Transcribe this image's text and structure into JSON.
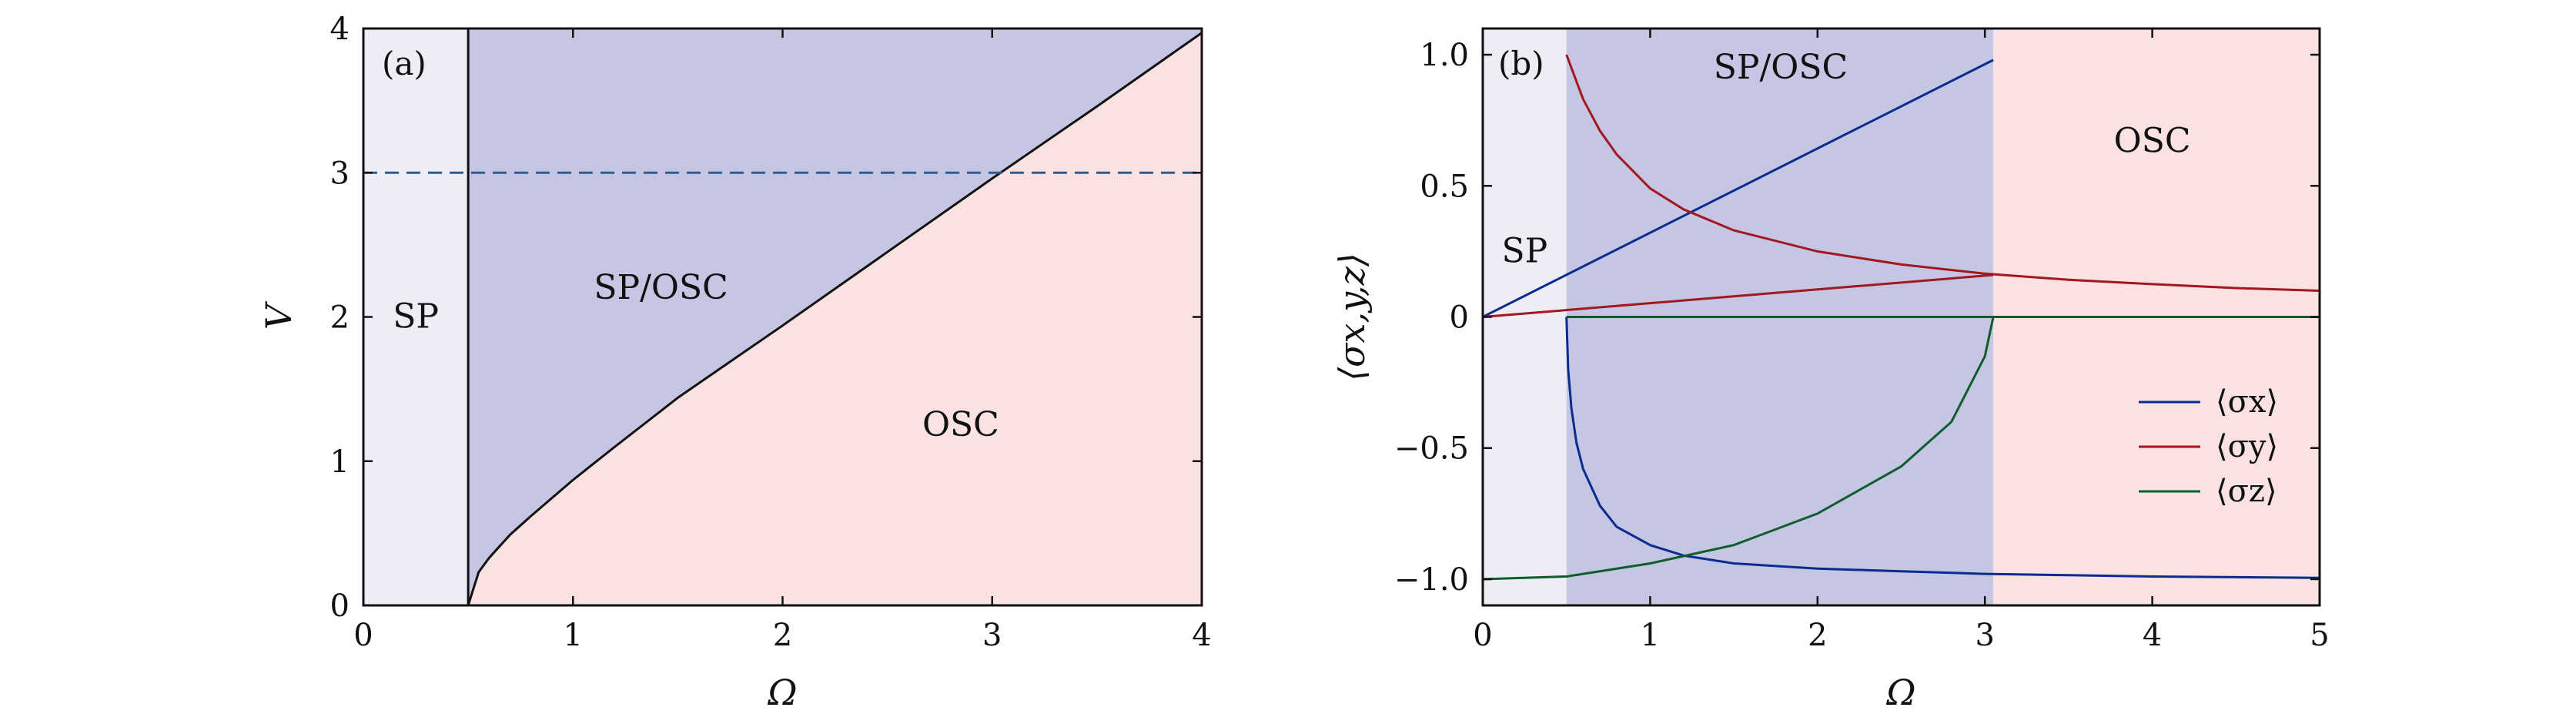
{
  "colors": {
    "sp_region": "#eeedf6",
    "sp_osc_region": "#c5c6e3",
    "osc_region": "#fae1e2",
    "boundary": "#111111",
    "dashed_line": "#2e5d8e",
    "sigma_x": "#0a2c8f",
    "sigma_y": "#a3181f",
    "sigma_z": "#0f5d2c"
  },
  "chart_data": [
    {
      "type": "area",
      "panel_label": "(a)",
      "xlabel": "Ω",
      "ylabel": "V",
      "xlim": [
        0,
        4
      ],
      "ylim": [
        0,
        4
      ],
      "xticks": [
        "0",
        "1",
        "2",
        "3",
        "4"
      ],
      "yticks": [
        "0",
        "1",
        "2",
        "3",
        "4"
      ],
      "grid": false,
      "regions": [
        {
          "label": "SP",
          "x_range": [
            0,
            0.5
          ]
        },
        {
          "label": "SP/OSC",
          "description_side": "above boundary, Ω > 0.5"
        },
        {
          "label": "OSC",
          "description_side": "below boundary, Ω > 0.5"
        }
      ],
      "boundary_curve": {
        "x": [
          0.5,
          0.55,
          0.6,
          0.7,
          0.8,
          1.0,
          1.2,
          1.5,
          2.0,
          2.5,
          3.0,
          3.5,
          4.0
        ],
        "y": [
          0.0,
          0.23,
          0.33,
          0.49,
          0.62,
          0.87,
          1.1,
          1.44,
          1.94,
          2.45,
          2.96,
          3.46,
          3.97
        ]
      },
      "vertical_boundary_x": 0.5,
      "dashed_line_y": 3
    },
    {
      "type": "line",
      "panel_label": "(b)",
      "xlabel": "Ω",
      "ylabel": "⟨σx,y,z⟩",
      "xlim": [
        0,
        5
      ],
      "ylim": [
        -1.1,
        1.1
      ],
      "xticks": [
        "0",
        "1",
        "2",
        "3",
        "4",
        "5"
      ],
      "yticks": [
        "1.0",
        "0.5",
        "0",
        "−0.5",
        "−1.0"
      ],
      "grid": false,
      "legend_position": "lower-right",
      "regions": [
        {
          "label": "SP",
          "x_range": [
            0,
            0.5
          ]
        },
        {
          "label": "SP/OSC",
          "x_range": [
            0.5,
            3.05
          ]
        },
        {
          "label": "OSC",
          "x_range": [
            3.05,
            5
          ]
        }
      ],
      "series": [
        {
          "name": "⟨σx⟩",
          "segments": [
            {
              "x": [
                0,
                3.05
              ],
              "y": [
                0,
                0.98
              ]
            },
            {
              "x": [
                0.5,
                0.51,
                0.53,
                0.56,
                0.6,
                0.7,
                0.8,
                1.0,
                1.2,
                1.5,
                2.0,
                2.5,
                3.0,
                3.5,
                4.0,
                5.0
              ],
              "y": [
                0,
                -0.2,
                -0.35,
                -0.48,
                -0.58,
                -0.72,
                -0.8,
                -0.87,
                -0.91,
                -0.94,
                -0.96,
                -0.97,
                -0.98,
                -0.985,
                -0.99,
                -0.995
              ]
            }
          ]
        },
        {
          "name": "⟨σy⟩",
          "segments": [
            {
              "x": [
                0,
                3.05
              ],
              "y": [
                0,
                0.16
              ]
            },
            {
              "x": [
                0.5,
                0.6,
                0.7,
                0.8,
                1.0,
                1.2,
                1.5,
                2.0,
                2.5,
                3.0,
                3.5,
                4.0,
                4.5,
                5.0
              ],
              "y": [
                1.0,
                0.83,
                0.71,
                0.62,
                0.49,
                0.41,
                0.33,
                0.25,
                0.2,
                0.165,
                0.142,
                0.125,
                0.11,
                0.1
              ]
            }
          ]
        },
        {
          "name": "⟨σz⟩",
          "segments": [
            {
              "x": [
                0,
                0.5,
                1.0,
                1.5,
                2.0,
                2.5,
                2.8,
                3.0,
                3.05
              ],
              "y": [
                -1.0,
                -0.99,
                -0.94,
                -0.87,
                -0.75,
                -0.57,
                -0.4,
                -0.15,
                0
              ]
            },
            {
              "x": [
                0.5,
                5.0
              ],
              "y": [
                0,
                0
              ]
            }
          ]
        }
      ]
    }
  ]
}
